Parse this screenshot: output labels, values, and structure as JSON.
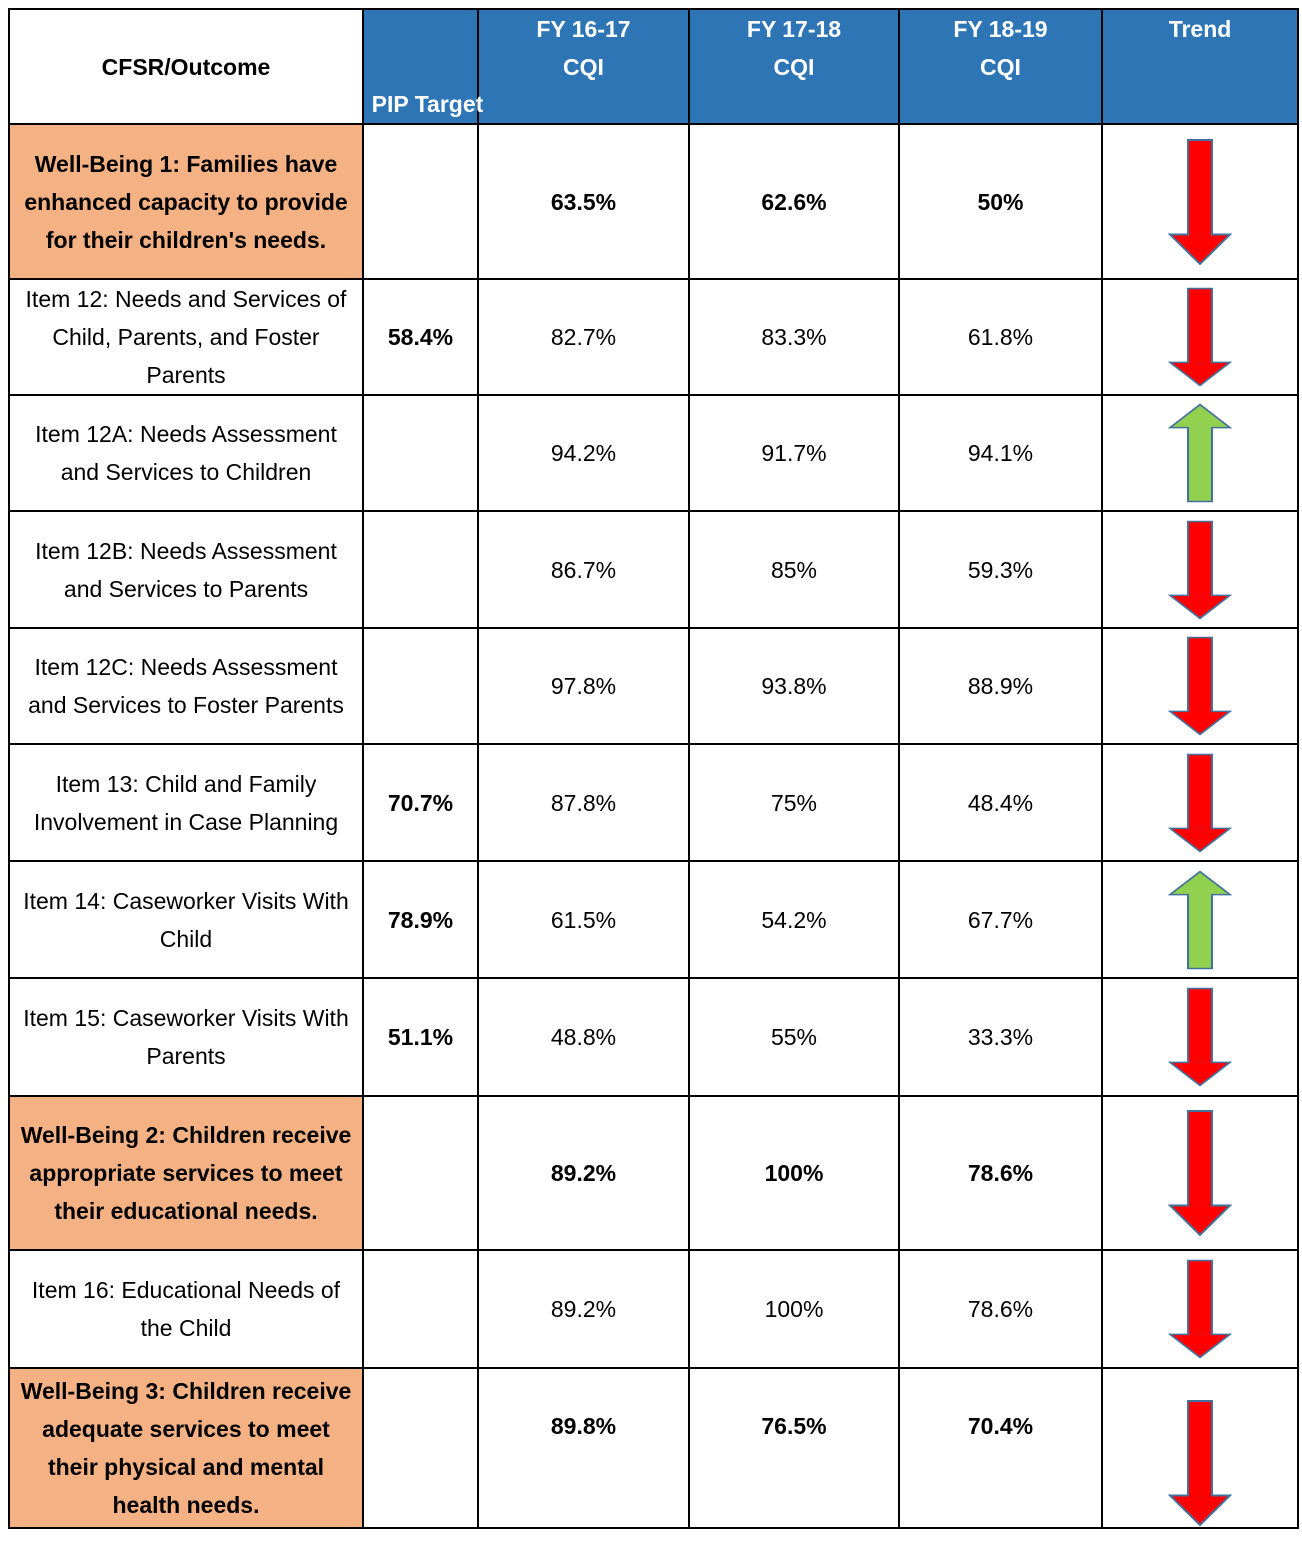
{
  "header": [
    "CFSR/Outcome",
    "PIP Target",
    "FY 16-17 CQI",
    "FY 17-18 CQI",
    "FY 18-19 CQI",
    "Trend"
  ],
  "rows": [
    {
      "label": "Well-Being 1: Families have enhanced capacity to provide for their children's needs.",
      "fy_16_17": "63.5%",
      "fy_17_18": "62.6%",
      "fy_18_19": "50%"
    },
    {
      "label": "Item 12: Needs and Services of Child, Parents, and Foster Parents",
      "pip_target": "58.4%",
      "fy_16_17": "82.7%",
      "fy_17_18": "83.3%",
      "fy_18_19": "61.8%"
    },
    {
      "label": "Item 12A: Needs Assessment and Services to Children",
      "fy_16_17": "94.2%",
      "fy_17_18": "91.7%",
      "fy_18_19": "94.1%"
    },
    {
      "label": "Item 12B: Needs Assessment and Services to Parents",
      "fy_16_17": "86.7%",
      "fy_17_18": "85%",
      "fy_18_19": "59.3%"
    },
    {
      "label": "Item 12C: Needs Assessment and Services to Foster Parents",
      "fy_16_17": "97.8%",
      "fy_17_18": "93.8%",
      "fy_18_19": "88.9%"
    },
    {
      "label": "Item 13: Child and Family Involvement in Case Planning",
      "pip_target": "70.7%",
      "fy_16_17": "87.8%",
      "fy_17_18": "75%",
      "fy_18_19": "48.4%"
    },
    {
      "label": "Item 14: Caseworker Visits With Child",
      "pip_target": "78.9%",
      "fy_16_17": "61.5%",
      "fy_17_18": "54.2%",
      "fy_18_19": "67.7%"
    },
    {
      "label": "Item 15: Caseworker Visits With Parents",
      "pip_target": "51.1%",
      "fy_16_17": "48.8%",
      "fy_17_18": "55%",
      "fy_18_19": "33.3%"
    },
    {
      "label": "Well-Being 2: Children receive appropriate services to meet their educational needs.",
      "fy_16_17": "89.2%",
      "fy_17_18": "100%",
      "fy_18_19": "78.6%"
    },
    {
      "label": "Item 16: Educational Needs of the Child",
      "fy_16_17": "89.2%",
      "fy_17_18": "100%",
      "fy_18_19": "78.6%"
    },
    {
      "label": "Well-Being 3: Children receive adequate services to meet their physical and mental health needs.",
      "fy_16_17": "89.8%",
      "fy_17_18": "76.5%",
      "fy_18_19": "70.4%"
    }
  ]
}
